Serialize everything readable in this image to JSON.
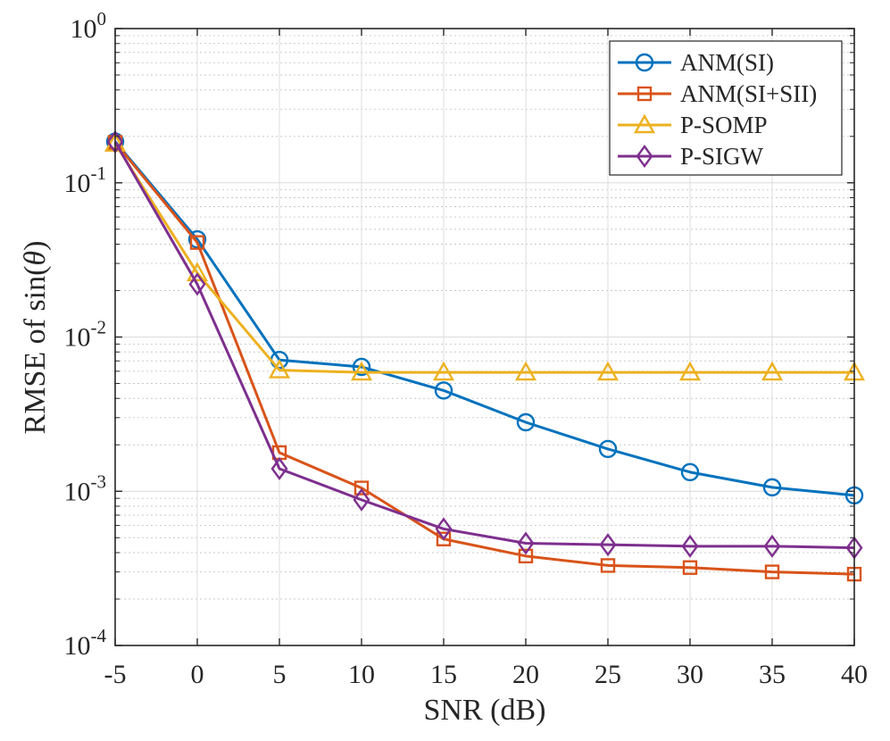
{
  "chart_data": {
    "type": "line",
    "title": "",
    "xlabel": "SNR (dB)",
    "ylabel_prefix": "RMSE of sin(",
    "ylabel_symbol": "θ",
    "ylabel_suffix": ")",
    "x": [
      -5,
      0,
      5,
      10,
      15,
      20,
      25,
      30,
      35,
      40
    ],
    "xlim": [
      -5,
      40
    ],
    "ylim": [
      0.0001,
      1
    ],
    "yscale": "log",
    "grid": true,
    "legend_position": "top-right",
    "x_tick_labels": [
      "-5",
      "0",
      "5",
      "10",
      "15",
      "20",
      "25",
      "30",
      "35",
      "40"
    ],
    "y_ticks": [
      {
        "value": 1,
        "base": "10",
        "exp": "0"
      },
      {
        "value": 0.1,
        "base": "10",
        "exp": "-1"
      },
      {
        "value": 0.01,
        "base": "10",
        "exp": "-2"
      },
      {
        "value": 0.001,
        "base": "10",
        "exp": "-3"
      },
      {
        "value": 0.0001,
        "base": "10",
        "exp": "-4"
      }
    ],
    "series": [
      {
        "name": "ANM(SI)",
        "color": "#0072BD",
        "marker": "circle",
        "values": [
          0.185,
          0.043,
          0.0071,
          0.0064,
          0.0045,
          0.0028,
          0.00188,
          0.00133,
          0.00106,
          0.00094
        ]
      },
      {
        "name": "ANM(SI+SII)",
        "color": "#D95319",
        "marker": "square",
        "values": [
          0.183,
          0.041,
          0.00178,
          0.00105,
          0.00049,
          0.00038,
          0.00033,
          0.00032,
          0.0003,
          0.00029
        ]
      },
      {
        "name": "P-SOMP",
        "color": "#EDB120",
        "marker": "triangle",
        "values": [
          0.18,
          0.026,
          0.0061,
          0.0059,
          0.0059,
          0.0059,
          0.0059,
          0.0059,
          0.0059,
          0.0059
        ]
      },
      {
        "name": "P-SIGW",
        "color": "#7E2F8E",
        "marker": "diamond",
        "values": [
          0.184,
          0.022,
          0.0014,
          0.00088,
          0.00057,
          0.00046,
          0.00045,
          0.00044,
          0.00044,
          0.00043
        ]
      }
    ]
  }
}
